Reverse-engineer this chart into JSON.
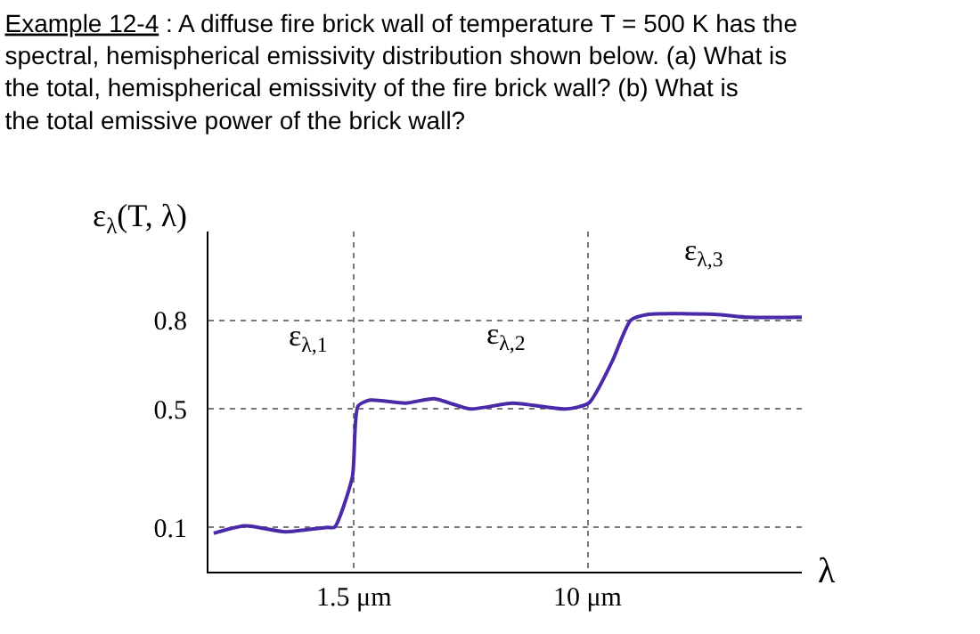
{
  "chart_data": {
    "type": "line",
    "title": "Example 12-4 : A diffuse fire brick wall of temperature T = 500 K has the spectral, hemispherical emissivity distribution shown below. (a) What is the total, hemispherical emissivity of the fire brick wall? (b) What is the total emissive power of the brick wall?",
    "xlabel": "λ",
    "ylabel": "ε$_{λ}$(T, λ)",
    "x": [
      0.48,
      0.62,
      0.86,
      1.21,
      1.28,
      1.48,
      1.55,
      1.71,
      2.28,
      2.88,
      3.85,
      5.44,
      8.4,
      10.1,
      12.2,
      14.2,
      16.4,
      28,
      37,
      57
    ],
    "series": [
      {
        "color": "#4a2aa8",
        "values": [
          0.08,
          0.105,
          0.085,
          0.1,
          0.1,
          0.27,
          0.51,
          0.53,
          0.52,
          0.535,
          0.5,
          0.52,
          0.5,
          0.52,
          0.66,
          0.8,
          0.82,
          0.82,
          0.81,
          0.81
        ]
      }
    ],
    "log": "x",
    "xlim": [
      0.46,
      57
    ],
    "ylim": [
      -0.05,
      1.1
    ],
    "xticks": [
      {
        "value": 1.5,
        "label": "1.5 μm"
      },
      {
        "value": 10,
        "label": "10 μm"
      }
    ],
    "yticks": [
      0.1,
      0.5,
      0.8
    ],
    "grid": true,
    "line_style": "solid",
    "marker": "none",
    "legend": false,
    "annotations": [
      "ε$_{λ,1}$",
      "ε$_{λ,2}$",
      "ε$_{λ,3}$"
    ]
  }
}
